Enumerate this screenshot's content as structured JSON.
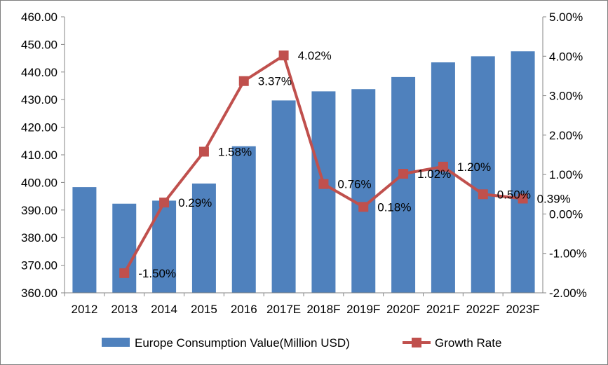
{
  "chart_data": {
    "type": "bar",
    "categories": [
      "2012",
      "2013",
      "2014",
      "2015",
      "2016",
      "2017E",
      "2018F",
      "2019F",
      "2020F",
      "2021F",
      "2022F",
      "2023F"
    ],
    "series": [
      {
        "name": "Europe Consumption Value(Million USD)",
        "type": "bar",
        "axis": "left",
        "color": "#4f81bd",
        "values": [
          398.3,
          392.3,
          393.4,
          399.6,
          413.1,
          429.7,
          433.0,
          433.8,
          438.2,
          443.5,
          445.7,
          447.5
        ]
      },
      {
        "name": "Growth Rate",
        "type": "line",
        "axis": "right",
        "color": "#c0504d",
        "values": [
          null,
          -1.5,
          0.29,
          1.58,
          3.37,
          4.02,
          0.76,
          0.18,
          1.02,
          1.2,
          0.5,
          0.39
        ],
        "labels": [
          "",
          "-1.50%",
          "0.29%",
          "1.58%",
          "3.37%",
          "4.02%",
          "0.76%",
          "0.18%",
          "1.02%",
          "1.20%",
          "0.50%",
          "0.39%"
        ]
      }
    ],
    "y_left": {
      "range": [
        360,
        460
      ],
      "ticks": [
        360,
        370,
        380,
        390,
        400,
        410,
        420,
        430,
        440,
        450,
        460
      ],
      "tick_labels": [
        "360.00",
        "370.00",
        "380.00",
        "390.00",
        "400.00",
        "410.00",
        "420.00",
        "430.00",
        "440.00",
        "450.00",
        "460.00"
      ]
    },
    "y_right": {
      "range": [
        -2,
        5
      ],
      "ticks": [
        -2,
        -1,
        0,
        1,
        2,
        3,
        4,
        5
      ],
      "tick_labels": [
        "-2.00%",
        "-1.00%",
        "0.00%",
        "1.00%",
        "2.00%",
        "3.00%",
        "4.00%",
        "5.00%"
      ]
    },
    "grid": false,
    "legend": "bottom"
  }
}
